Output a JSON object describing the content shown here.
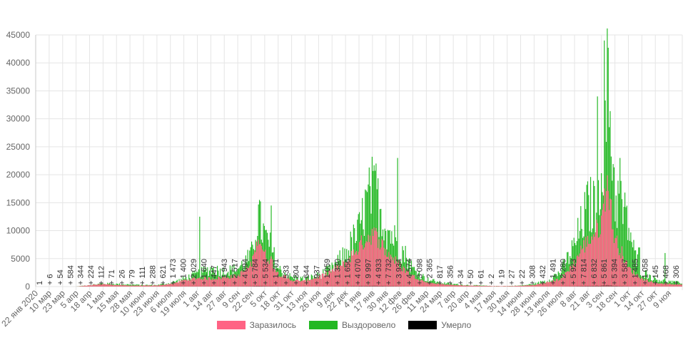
{
  "chart_data": {
    "type": "bar",
    "stacked": true,
    "title": "",
    "xlabel": "",
    "ylabel": "",
    "ylim": [
      0,
      45000
    ],
    "yticks": [
      0,
      5000,
      10000,
      15000,
      20000,
      25000,
      30000,
      35000,
      40000,
      45000
    ],
    "grid": true,
    "legend_position": "bottom",
    "x_tick_labels": [
      "22 янв 2020",
      "10 мар",
      "23 мар",
      "5 апр",
      "18 апр",
      "1 мая",
      "15 мая",
      "28 мая",
      "10 июня",
      "23 июня",
      "6 июля",
      "19 июля",
      "1 авг",
      "14 авг",
      "27 авг",
      "9 сен",
      "22 сен",
      "5 окт",
      "18 окт",
      "31 окт",
      "13 ноя",
      "26 ноя",
      "9 дек",
      "22 дек",
      "4 янв",
      "17 янв",
      "30 янв",
      "12 фев",
      "26 фев",
      "11 мар",
      "24 мар",
      "7 апр",
      "20 апр",
      "4 мая",
      "17 мая",
      "30 мая",
      "14 июня",
      "28 июня",
      "13 июля",
      "26 июля",
      "8 авг",
      "21 авг",
      "3 сен",
      "18 сен",
      "1 окт",
      "14 окт",
      "27 окт",
      "9 ноя"
    ],
    "series": [
      {
        "name": "Заразилось",
        "color": "#ff6384"
      },
      {
        "name": "Выздоровело",
        "color": "#22b822"
      },
      {
        "name": "Умерло",
        "color": "#000000"
      }
    ],
    "envelope_points": {
      "x": [
        0,
        3,
        5,
        6,
        7,
        8,
        9,
        10,
        11,
        12,
        13,
        14,
        15,
        16,
        16.5,
        17,
        17.5,
        18,
        19,
        20,
        21,
        22,
        23,
        24,
        24.5,
        25,
        25.5,
        26,
        26.5,
        27,
        27.5,
        28,
        29,
        30,
        31,
        32,
        33,
        34,
        35,
        36,
        37,
        38,
        39,
        40,
        40.5,
        41,
        41.5,
        42,
        42.3,
        42.5,
        42.8,
        43,
        43.5,
        44,
        44.5,
        45,
        46,
        47,
        47.5
      ],
      "infected": [
        0,
        0,
        500,
        300,
        200,
        200,
        200,
        500,
        1200,
        1600,
        1500,
        1700,
        2000,
        4000,
        10000,
        6000,
        5000,
        2500,
        1200,
        1100,
        1800,
        3000,
        4500,
        7500,
        9000,
        10000,
        9000,
        6500,
        5500,
        4000,
        3000,
        2000,
        800,
        500,
        300,
        200,
        150,
        100,
        100,
        150,
        300,
        800,
        1500,
        4500,
        7000,
        8500,
        10000,
        12000,
        18000,
        20000,
        12000,
        9000,
        6500,
        3500,
        2500,
        1500,
        700,
        500,
        400
      ],
      "recovered": [
        0,
        0,
        600,
        500,
        400,
        300,
        300,
        700,
        1500,
        2500,
        3500,
        3000,
        3500,
        6000,
        14000,
        10000,
        7500,
        3500,
        1800,
        1500,
        2200,
        3500,
        6500,
        11000,
        16000,
        19000,
        16000,
        12000,
        10000,
        8000,
        6000,
        3500,
        1500,
        800,
        500,
        300,
        200,
        100,
        100,
        200,
        500,
        1200,
        3000,
        8000,
        12000,
        16000,
        16000,
        24000,
        34000,
        40000,
        28000,
        18000,
        16000,
        12000,
        6000,
        3000,
        1500,
        1000,
        800
      ],
      "spikes": [
        {
          "x": 12.2,
          "recovered": 12500
        },
        {
          "x": 16.6,
          "recovered": 15500
        },
        {
          "x": 17.5,
          "recovered": 14500
        },
        {
          "x": 25.3,
          "recovered": 22000
        },
        {
          "x": 26.9,
          "recovered": 23000
        },
        {
          "x": 41.7,
          "recovered": 34000
        },
        {
          "x": 42.2,
          "recovered": 44000
        },
        {
          "x": 42.6,
          "recovered": 27500
        },
        {
          "x": 43.4,
          "recovered": 23000
        },
        {
          "x": 44.8,
          "recovered": 7000
        },
        {
          "x": 46.7,
          "recovered": 6000
        }
      ]
    },
    "annotations": [
      "1",
      "+ 6",
      "+ 54",
      "+ 584",
      "+ 344",
      "+ 224",
      "+ 112",
      "+ 71",
      "+ 26",
      "+ 79",
      "+ 111",
      "+ 288",
      "+ 621",
      "+ 1 473",
      "+ 1 400",
      "+ 2 029",
      "+ 1 640",
      "+ 447",
      "+ 1 943",
      "+ 2 517",
      "+ 4 094",
      "+ 5 784",
      "+ 5 534",
      "+ 1 701",
      "+ 533",
      "+ 804",
      "+ 644",
      "+ 937",
      "+ 1 059",
      "+ 1 330",
      "+ 1 656",
      "+ 4 070",
      "+ 9 997",
      "+ 4 933",
      "+ 7 732",
      "+ 3 934",
      "+ 4 574",
      "+ 3 098",
      "+ 2 365",
      "+ 817",
      "+ 356",
      "+ 34",
      "+ 50",
      "+ 61",
      "+ 2",
      "+ 19",
      "+ 27",
      "+ 22",
      "+ 308",
      "+ 432",
      "+ 1 491",
      "+ 2 280",
      "+ 5 923",
      "+ 7 814",
      "+ 6 832",
      "+ 5 861",
      "+ 5 394",
      "+ 3 587",
      "+ 1 485",
      "+ 1 058",
      "+ 145",
      "+ 468",
      "+ 306"
    ]
  }
}
